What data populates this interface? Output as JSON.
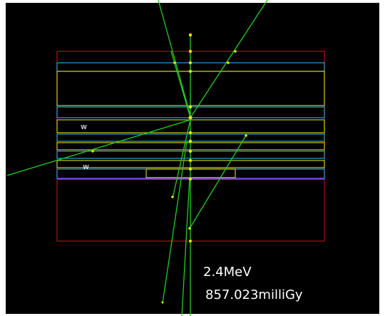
{
  "labels": {
    "layer_1": "w",
    "layer_2": "w"
  },
  "readout": {
    "energy": "2.4MeV",
    "dose": "857.023milliGy"
  }
}
